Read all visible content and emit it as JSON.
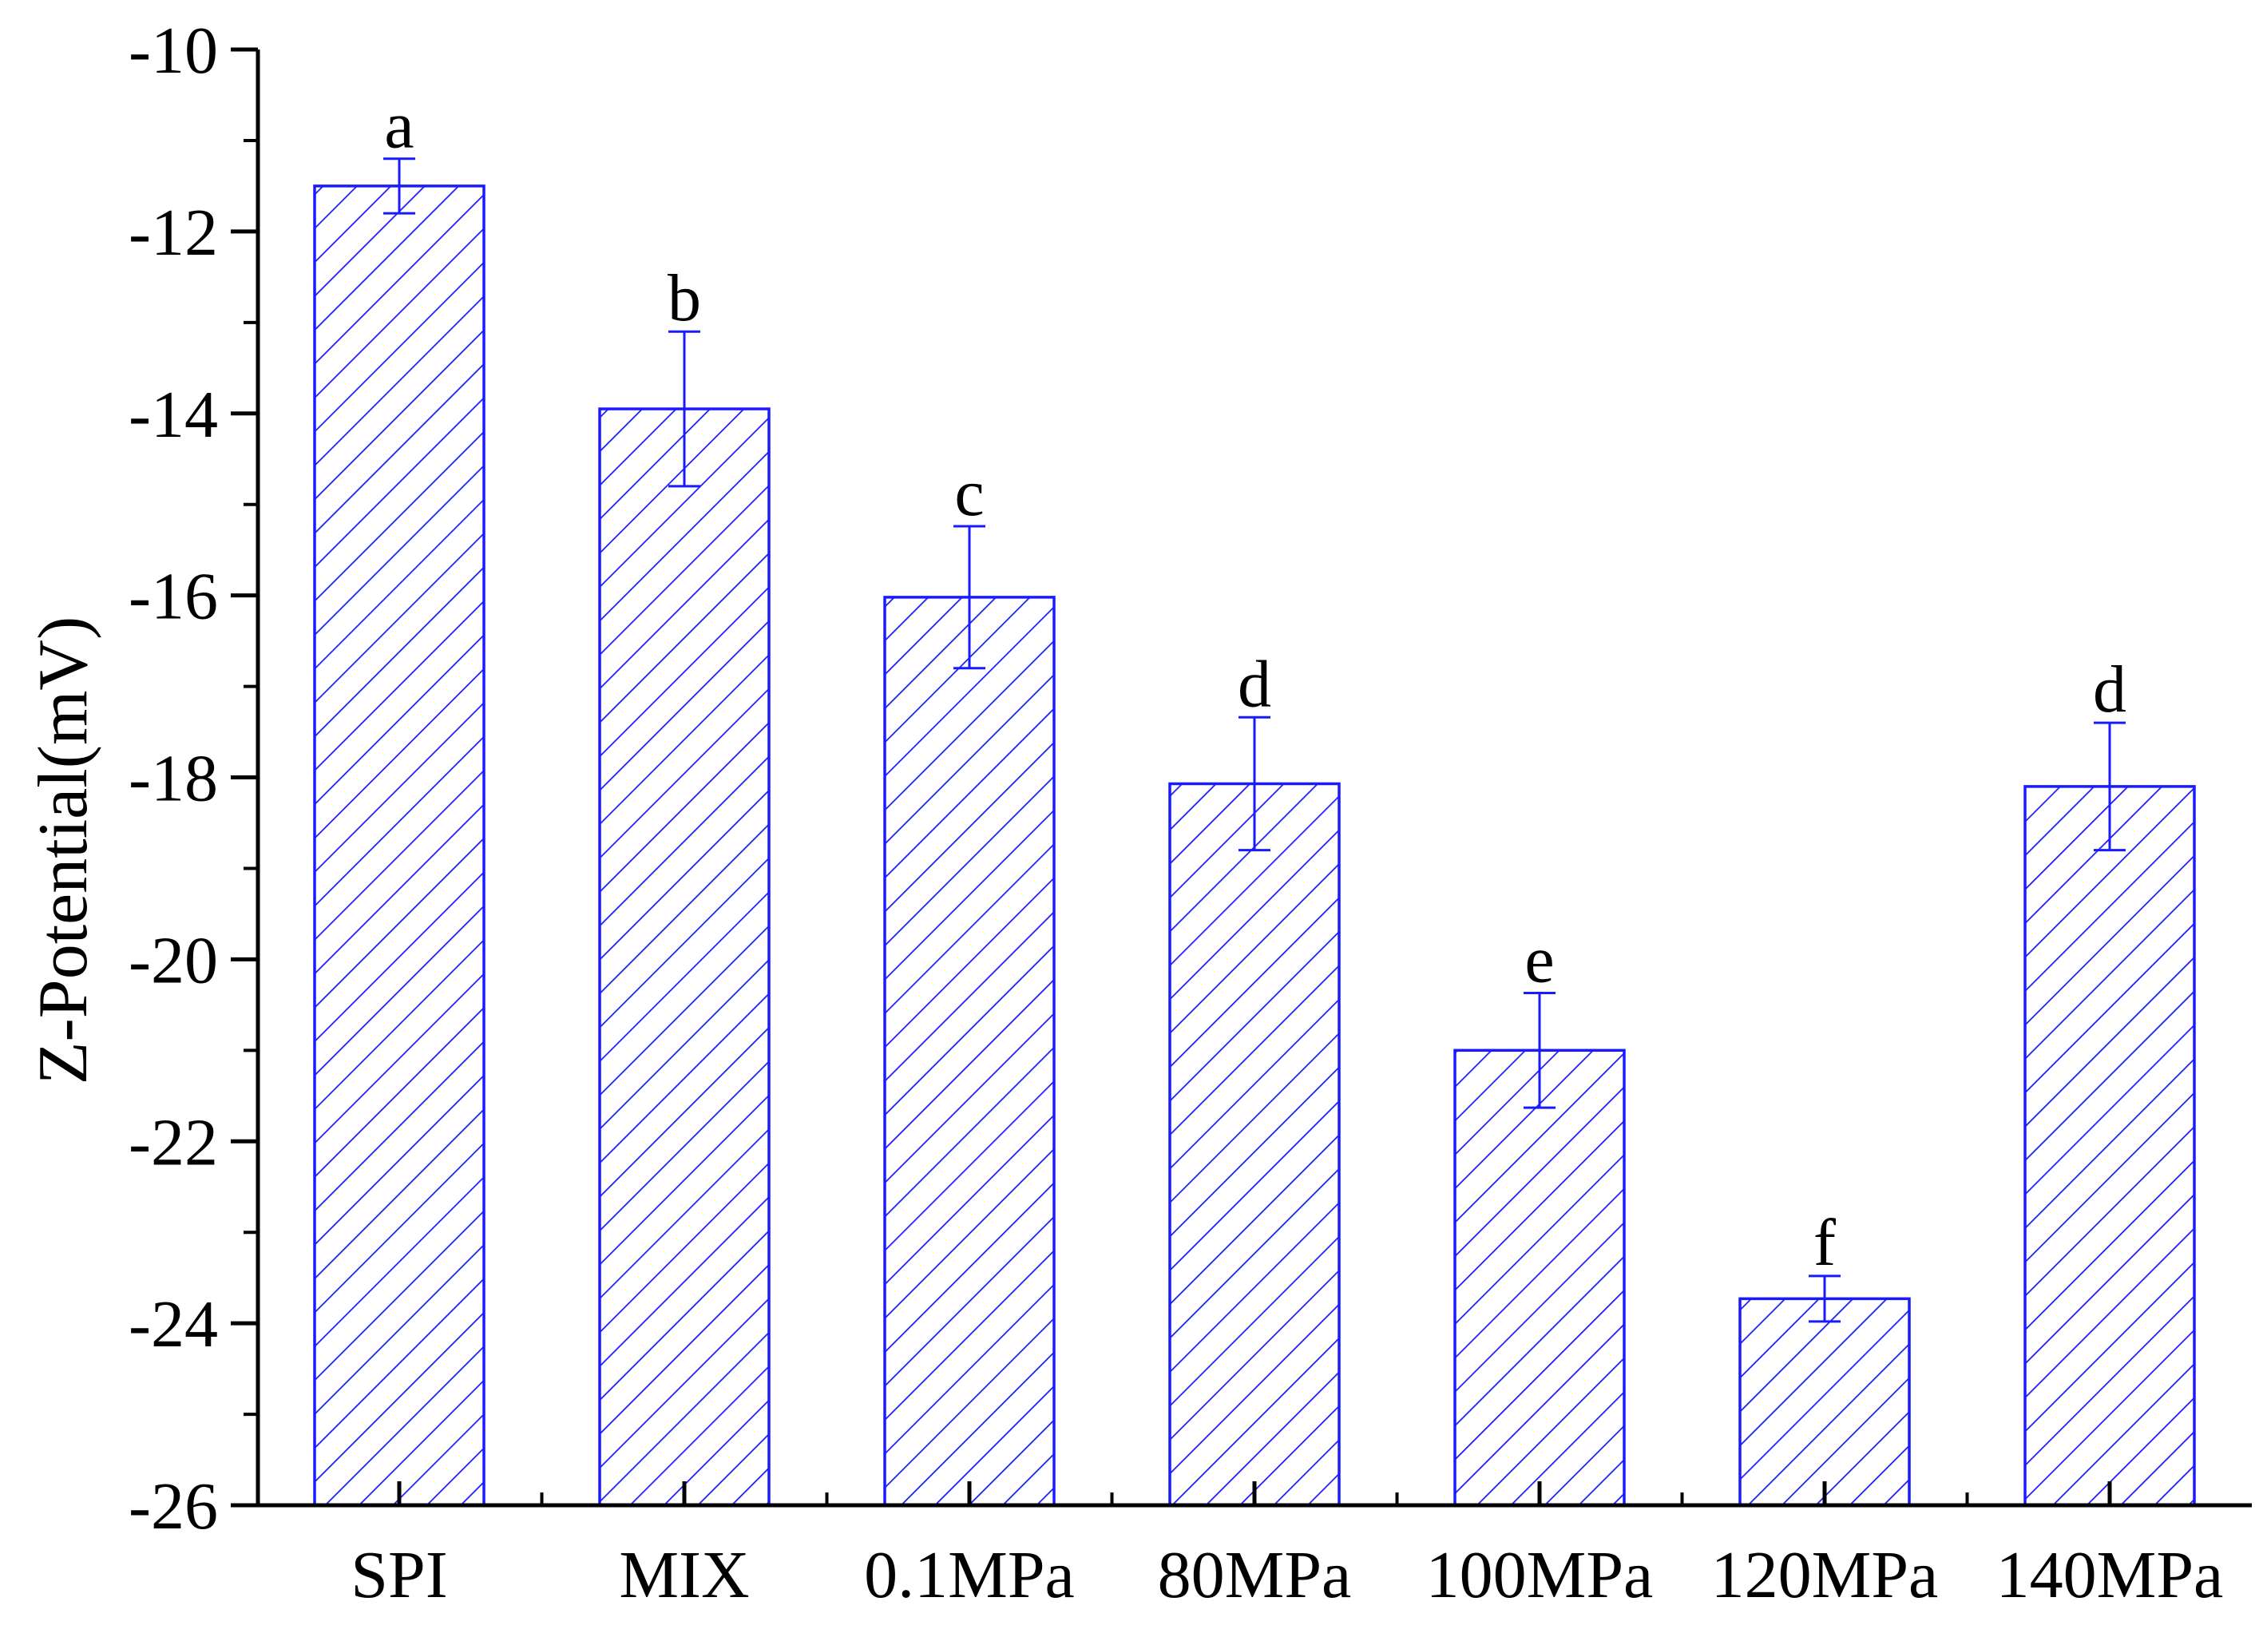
{
  "chart_data": {
    "type": "bar",
    "title": "",
    "xlabel": "",
    "ylabel": "Z-Potential(mV)",
    "ylim": [
      -26,
      -10
    ],
    "yticks": [
      -10,
      -12,
      -14,
      -16,
      -18,
      -20,
      -22,
      -24,
      -26
    ],
    "grid": false,
    "legend": "none",
    "categories": [
      "SPI",
      "MIX",
      "0.1MPa",
      "80MPa",
      "100MPa",
      "120MPa",
      "140MPa"
    ],
    "values": [
      -11.5,
      -13.95,
      -16.02,
      -18.07,
      -21.0,
      -23.73,
      -18.1
    ],
    "errors": [
      0.3,
      0.85,
      0.78,
      0.73,
      0.63,
      0.25,
      0.7
    ],
    "significance_letters": [
      "a",
      "b",
      "c",
      "d",
      "e",
      "f",
      "d"
    ],
    "colors": {
      "bar_stroke": "#1a1aff",
      "hatch": "#1a1aff",
      "error_bar": "#1a1aff",
      "axis": "#000000"
    }
  }
}
